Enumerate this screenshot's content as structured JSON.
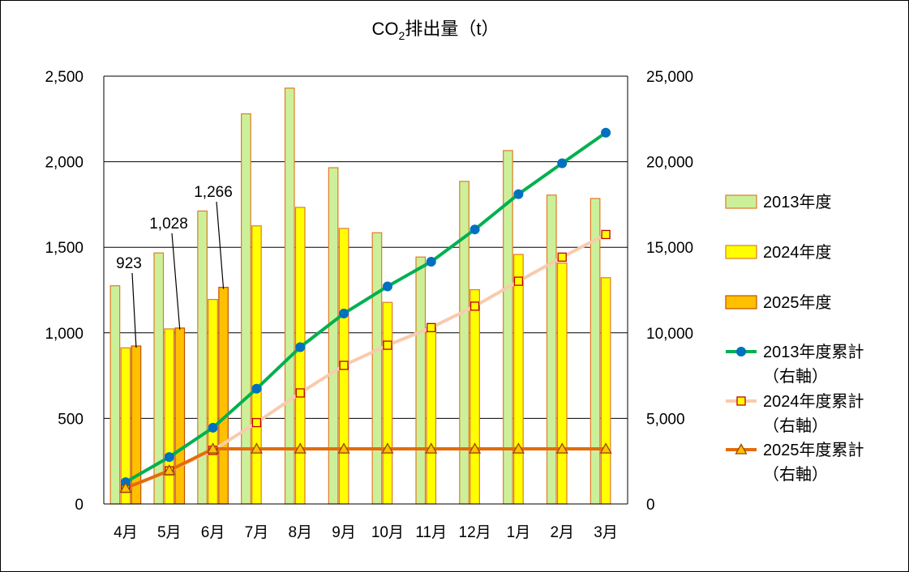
{
  "chart_data": {
    "type": "bar",
    "title": {
      "main": "CO",
      "sub": "2",
      "rest": "排出量（t）"
    },
    "categories": [
      "4月",
      "5月",
      "6月",
      "7月",
      "8月",
      "9月",
      "10月",
      "11月",
      "12月",
      "1月",
      "2月",
      "3月"
    ],
    "y_left": {
      "min": 0,
      "max": 2500,
      "ticks": [
        0,
        500,
        1000,
        1500,
        2000,
        2500
      ],
      "tick_labels": [
        "0",
        "500",
        "1,000",
        "1,500",
        "2,000",
        "2,500"
      ]
    },
    "y_right": {
      "min": 0,
      "max": 25000,
      "ticks": [
        0,
        5000,
        10000,
        15000,
        20000,
        25000
      ],
      "tick_labels": [
        "0",
        "5,000",
        "10,000",
        "15,000",
        "20,000",
        "25,000"
      ]
    },
    "grid": true,
    "legend_position": "right",
    "bar_series": [
      {
        "name": "2013年度",
        "fill": "#ccf09a",
        "stroke": "#e07b22",
        "values": [
          1275,
          1467,
          1712,
          2280,
          2430,
          1965,
          1585,
          1443,
          1885,
          2065,
          1805,
          1785
        ]
      },
      {
        "name": "2024年度",
        "fill": "#ffff00",
        "stroke": "#e07b22",
        "values": [
          912,
          1023,
          1195,
          1625,
          1733,
          1610,
          1178,
          1030,
          1252,
          1458,
          1408,
          1322
        ]
      },
      {
        "name": "2025年度",
        "fill": "#ffc000",
        "stroke": "#c05000",
        "values": [
          923,
          1028,
          1266
        ]
      }
    ],
    "line_series": [
      {
        "name": "2013年度累計",
        "name_line2": "（右軸）",
        "color": "#00b050",
        "marker": "circle",
        "marker_fill": "#0070c0",
        "values": [
          1275,
          2742,
          4454,
          6734,
          9164,
          11129,
          12714,
          14157,
          16042,
          18107,
          19912,
          21697
        ]
      },
      {
        "name": "2024年度累計",
        "name_line2": "（右軸）",
        "color": "#f8cbad",
        "marker": "square",
        "marker_fill": "#ffff00",
        "marker_stroke": "#c00000",
        "values": [
          912,
          1935,
          3130,
          4755,
          6488,
          8098,
          9276,
          10306,
          11558,
          13016,
          14424,
          15746
        ]
      },
      {
        "name": "2025年度累計",
        "name_line2": "（右軸）",
        "color": "#e36c0a",
        "marker": "triangle",
        "marker_fill": "#ffc000",
        "marker_stroke": "#984807",
        "values": [
          923,
          1951,
          3217,
          3217,
          3217,
          3217,
          3217,
          3217,
          3217,
          3217,
          3217,
          3217
        ]
      }
    ],
    "annotations": [
      {
        "text": "923",
        "category_index": 0,
        "series": "2025年度"
      },
      {
        "text": "1,028",
        "category_index": 1,
        "series": "2025年度"
      },
      {
        "text": "1,266",
        "category_index": 2,
        "series": "2025年度"
      }
    ]
  }
}
